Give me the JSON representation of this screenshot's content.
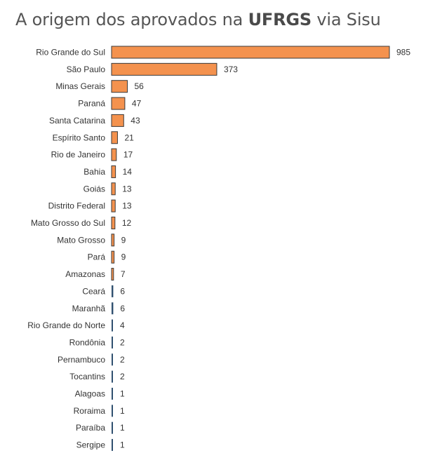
{
  "title": {
    "prefix": "A origem dos aprovados na ",
    "highlight": "UFRGS",
    "suffix": " via Sisu"
  },
  "colors": {
    "bar_fill": "#f4924e",
    "bar_stroke": "#3a3a3a",
    "small_bar": "#2f4f6f"
  },
  "chart_data": {
    "type": "bar",
    "orientation": "horizontal",
    "title": "A origem dos aprovados na UFRGS via Sisu",
    "categories": [
      "Rio Grande do Sul",
      "São Paulo",
      "Minas Gerais",
      "Paraná",
      "Santa Catarina",
      "Espírito Santo",
      "Rio de Janeiro",
      "Bahia",
      "Goiás",
      "Distrito Federal",
      "Mato Grosso do Sul",
      "Mato Grosso",
      "Pará",
      "Amazonas",
      "Ceará",
      "Maranhã",
      "Rio Grande do Norte",
      "Rondônia",
      "Pernambuco",
      "Tocantins",
      "Alagoas",
      "Roraima",
      "Paraíba",
      "Sergipe"
    ],
    "values": [
      985,
      373,
      56,
      47,
      43,
      21,
      17,
      14,
      13,
      13,
      12,
      9,
      9,
      7,
      6,
      6,
      4,
      2,
      2,
      2,
      1,
      1,
      1,
      1
    ],
    "xlim": [
      0,
      985
    ],
    "grid": false,
    "legend": "none",
    "data_labels": true
  }
}
